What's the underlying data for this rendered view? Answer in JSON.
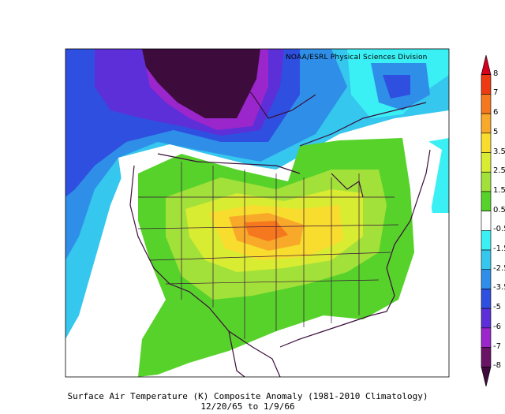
{
  "credit": "NOAA/ESRL Physical Sciences Division",
  "caption": {
    "line1": "Surface Air Temperature (K) Composite Anomaly (1981-2010 Climatology)",
    "line2": "12/20/65  to 1/9/66"
  },
  "colorbar": {
    "labels": [
      "8",
      "7",
      "6",
      "5",
      "3.5",
      "2.5",
      "1.5",
      "0.5",
      "-0.5",
      "-1.5",
      "-2.5",
      "-3.5",
      "-5",
      "-6",
      "-7",
      "-8"
    ],
    "colors": [
      "#d4001c",
      "#ee3a12",
      "#f6781e",
      "#f9a929",
      "#f8dc2e",
      "#d8ec32",
      "#a2e13a",
      "#57d22b",
      "#ffffff",
      "#3bf0f4",
      "#35c7ee",
      "#2f8fe8",
      "#2f4fe0",
      "#5c2fd8",
      "#9a26cc",
      "#6a1466",
      "#3d0c3d"
    ]
  }
}
